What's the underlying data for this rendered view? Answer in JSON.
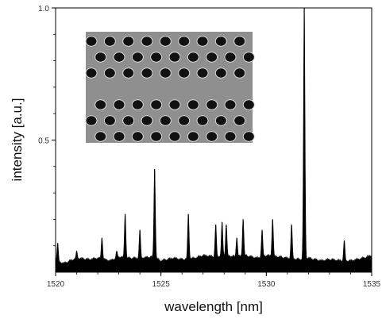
{
  "chart_data": {
    "type": "area",
    "xlabel": "wavelength [nm]",
    "ylabel": "intensity [a.u.]",
    "xlim": [
      1520,
      1535
    ],
    "ylim": [
      0,
      1.0
    ],
    "x_ticks": [
      "1520",
      "1525",
      "1530",
      "1535"
    ],
    "y_ticks": [
      "0.5",
      "1.0"
    ],
    "grid": false,
    "legend": "none",
    "fill_color": "#000000",
    "baseline": [
      [
        1520.0,
        0.04
      ],
      [
        1520.4,
        0.03
      ],
      [
        1521.0,
        0.05
      ],
      [
        1521.6,
        0.045
      ],
      [
        1522.0,
        0.05
      ],
      [
        1522.6,
        0.04
      ],
      [
        1523.0,
        0.055
      ],
      [
        1523.4,
        0.05
      ],
      [
        1524.0,
        0.05
      ],
      [
        1524.6,
        0.055
      ],
      [
        1525.0,
        0.04
      ],
      [
        1525.6,
        0.05
      ],
      [
        1526.0,
        0.045
      ],
      [
        1526.6,
        0.05
      ],
      [
        1527.0,
        0.06
      ],
      [
        1527.6,
        0.055
      ],
      [
        1528.0,
        0.06
      ],
      [
        1528.6,
        0.055
      ],
      [
        1529.0,
        0.06
      ],
      [
        1529.6,
        0.05
      ],
      [
        1530.0,
        0.06
      ],
      [
        1530.6,
        0.055
      ],
      [
        1531.0,
        0.05
      ],
      [
        1531.6,
        0.045
      ],
      [
        1532.0,
        0.05
      ],
      [
        1532.6,
        0.04
      ],
      [
        1533.0,
        0.045
      ],
      [
        1533.6,
        0.04
      ],
      [
        1534.0,
        0.04
      ],
      [
        1534.6,
        0.05
      ],
      [
        1535.0,
        0.06
      ]
    ],
    "peaks": [
      {
        "x": 1520.1,
        "y": 0.11
      },
      {
        "x": 1521.0,
        "y": 0.08
      },
      {
        "x": 1522.2,
        "y": 0.13
      },
      {
        "x": 1522.9,
        "y": 0.08
      },
      {
        "x": 1523.3,
        "y": 0.22
      },
      {
        "x": 1524.0,
        "y": 0.16
      },
      {
        "x": 1524.7,
        "y": 0.39
      },
      {
        "x": 1526.3,
        "y": 0.22
      },
      {
        "x": 1527.6,
        "y": 0.18
      },
      {
        "x": 1527.9,
        "y": 0.19
      },
      {
        "x": 1528.1,
        "y": 0.18
      },
      {
        "x": 1528.6,
        "y": 0.13
      },
      {
        "x": 1528.9,
        "y": 0.2
      },
      {
        "x": 1529.8,
        "y": 0.16
      },
      {
        "x": 1530.3,
        "y": 0.2
      },
      {
        "x": 1531.2,
        "y": 0.18
      },
      {
        "x": 1531.8,
        "y": 1.0
      },
      {
        "x": 1533.7,
        "y": 0.12
      }
    ],
    "inset": {
      "kind": "photonic-crystal-micrograph",
      "rows": 6,
      "cols": 9,
      "defect_after_row": 3,
      "bg_color": "#8f8f8f",
      "hole_color": "#111111"
    }
  }
}
